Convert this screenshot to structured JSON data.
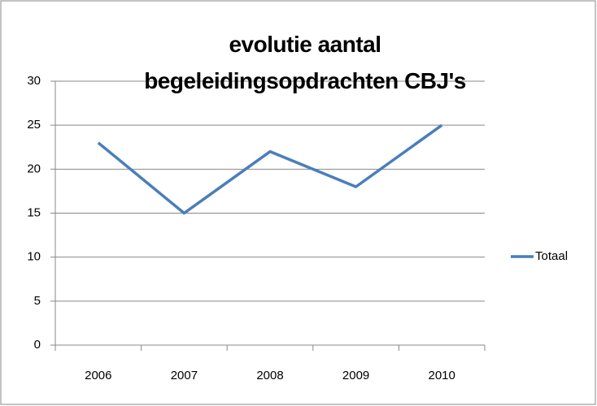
{
  "chart_data": {
    "type": "line",
    "title": "evolutie aantal begeleidingsopdrachten CBJ's",
    "categories": [
      "2006",
      "2007",
      "2008",
      "2009",
      "2010"
    ],
    "series": [
      {
        "name": "Totaal",
        "color": "#4a7ebb",
        "values": [
          23,
          15,
          22,
          18,
          25
        ]
      }
    ],
    "ylim": [
      0,
      30
    ],
    "yticks": [
      0,
      5,
      10,
      15,
      20,
      25,
      30
    ],
    "grid": true,
    "legend": "right"
  }
}
